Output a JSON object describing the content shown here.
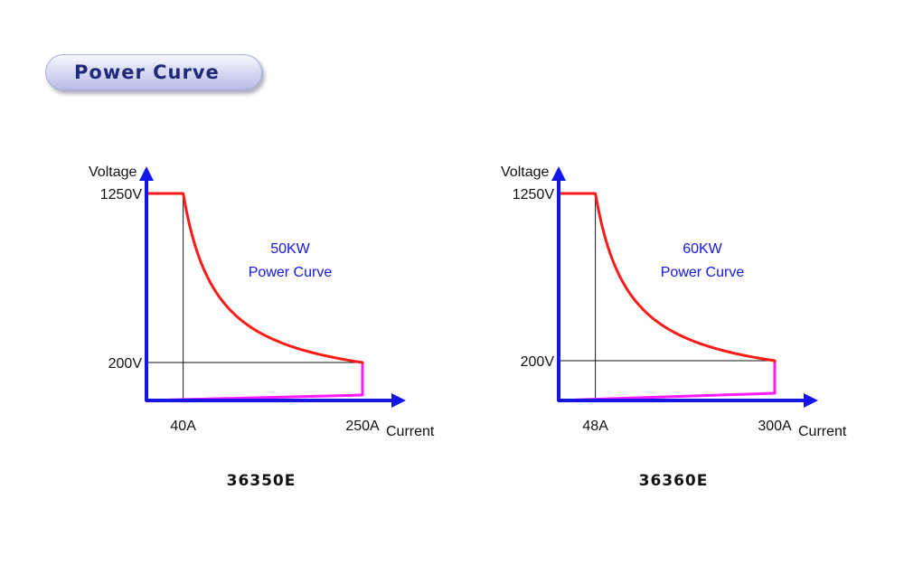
{
  "page": {
    "title": "Power Curve"
  },
  "chart_data": [
    {
      "type": "line",
      "model": "36350E",
      "annotation": [
        "50KW",
        "Power Curve"
      ],
      "ylabel": "Voltage",
      "xlabel": "Current",
      "x_ticks": [
        "40A",
        "250A"
      ],
      "y_ticks": [
        "1250V",
        "200V"
      ],
      "power_kw": 50,
      "series": [
        {
          "color": "#ff1a1a",
          "x": [
            0,
            40,
            60,
            80,
            100,
            125,
            150,
            175,
            200,
            225,
            250,
            250
          ],
          "y": [
            1250,
            1250,
            833,
            625,
            500,
            400,
            333,
            286,
            250,
            222,
            200,
            0
          ]
        },
        {
          "color": "#ff1aff",
          "x": [
            0,
            250,
            250
          ],
          "y": [
            0,
            40,
            0
          ]
        }
      ],
      "reference_lines": {
        "x": 40,
        "y": 200
      }
    },
    {
      "type": "line",
      "model": "36360E",
      "annotation": [
        "60KW",
        "Power Curve"
      ],
      "ylabel": "Voltage",
      "xlabel": "Current",
      "x_ticks": [
        "48A",
        "300A"
      ],
      "y_ticks": [
        "1250V",
        "200V"
      ],
      "power_kw": 60,
      "series": [
        {
          "color": "#ff1a1a",
          "x": [
            0,
            48,
            72,
            96,
            120,
            150,
            180,
            210,
            240,
            270,
            300,
            300
          ],
          "y": [
            1250,
            1250,
            833,
            625,
            500,
            400,
            333,
            286,
            250,
            222,
            200,
            0
          ]
        },
        {
          "color": "#ff1aff",
          "x": [
            0,
            300,
            300
          ],
          "y": [
            0,
            40,
            0
          ]
        }
      ],
      "reference_lines": {
        "x": 48,
        "y": 200
      }
    }
  ],
  "colors": {
    "axis": "#1515e6",
    "curve": "#ff1a1a",
    "lower": "#ff1aff",
    "guide": "#111111"
  }
}
